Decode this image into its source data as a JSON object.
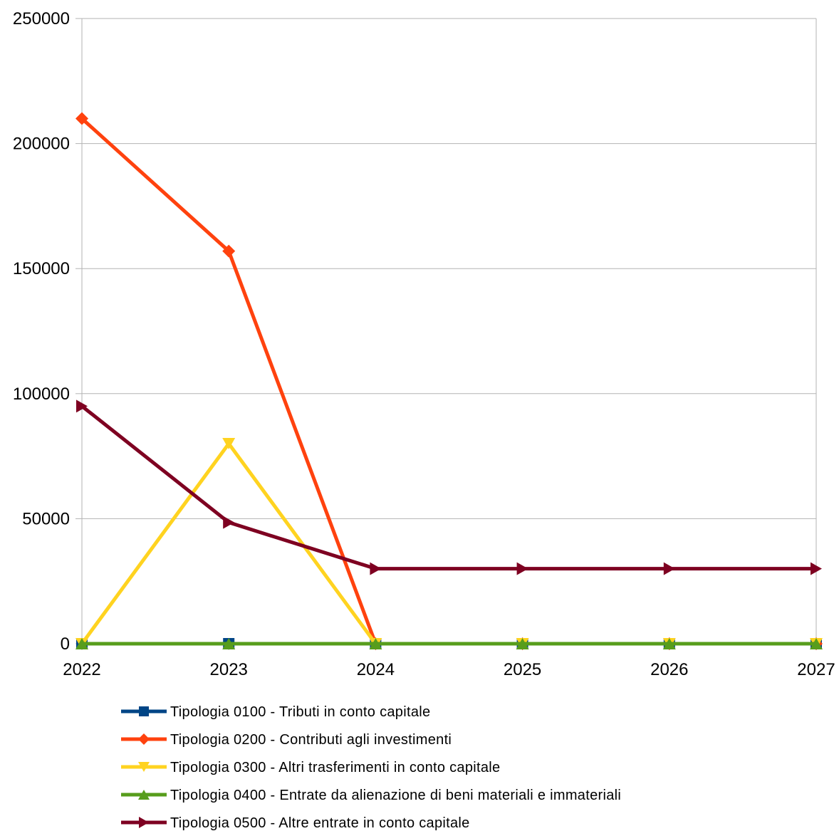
{
  "chart_data": {
    "type": "line",
    "categories": [
      "2022",
      "2023",
      "2024",
      "2025",
      "2026",
      "2027"
    ],
    "ylim": [
      0,
      250000
    ],
    "yticks": [
      0,
      50000,
      100000,
      150000,
      200000,
      250000
    ],
    "ytick_labels": [
      "0",
      "50000",
      "100000",
      "150000",
      "200000",
      "250000"
    ],
    "grid": true,
    "legend_position": "bottom",
    "series": [
      {
        "name": "Tipologia 0100 - Tributi in conto capitale",
        "color": "#004586",
        "marker": "square",
        "values": [
          0,
          0,
          0,
          0,
          0,
          0
        ]
      },
      {
        "name": "Tipologia 0200 - Contributi agli investimenti",
        "color": "#ff420e",
        "marker": "diamond",
        "values": [
          210000,
          157000,
          0,
          0,
          0,
          0
        ]
      },
      {
        "name": "Tipologia 0300 - Altri trasferimenti in conto capitale",
        "color": "#ffd320",
        "marker": "triangle-down",
        "values": [
          0,
          80000,
          0,
          0,
          0,
          0
        ]
      },
      {
        "name": "Tipologia 0400 - Entrate da alienazione di beni materiali e immateriali",
        "color": "#579d1c",
        "marker": "triangle-up",
        "values": [
          0,
          0,
          0,
          0,
          0,
          0
        ]
      },
      {
        "name": "Tipologia 0500 - Altre entrate in conto capitale",
        "color": "#7e0021",
        "marker": "triangle-right",
        "values": [
          95000,
          48500,
          30000,
          30000,
          30000,
          30000
        ]
      }
    ]
  }
}
